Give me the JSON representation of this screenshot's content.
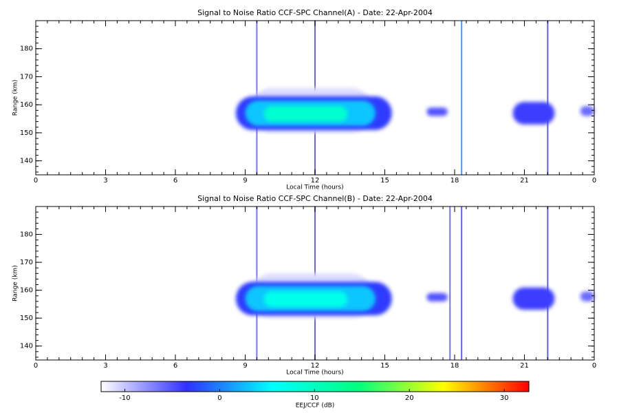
{
  "chart_data": [
    {
      "type": "heatmap",
      "title": "Signal to Noise Ratio CCF-SPC Channel(A) - Date: 22-Apr-2004",
      "xlabel": "Local Time (hours)",
      "ylabel": "Range (km)",
      "xlim": [
        0,
        24
      ],
      "xticks": [
        0,
        3,
        6,
        9,
        12,
        15,
        18,
        21,
        {
          "value": 24,
          "label": "0"
        }
      ],
      "ylim": [
        135,
        190
      ],
      "yticks": [
        140,
        150,
        160,
        170,
        180
      ],
      "regions": [
        {
          "x": [
            9.2,
            14.5
          ],
          "y": [
            150,
            166
          ],
          "value": -11
        },
        {
          "x": [
            8.6,
            15.3
          ],
          "y": [
            151,
            163
          ],
          "value": -3
        },
        {
          "x": [
            9.0,
            14.6
          ],
          "y": [
            152.5,
            161.5
          ],
          "value": 3
        },
        {
          "x": [
            9.8,
            13.4
          ],
          "y": [
            154,
            159.5
          ],
          "value": 9
        },
        {
          "x": [
            16.8,
            17.7
          ],
          "y": [
            156,
            159
          ],
          "value": -5
        },
        {
          "x": [
            20.5,
            22.3
          ],
          "y": [
            153,
            161
          ],
          "value": -4
        },
        {
          "x": [
            23.4,
            24
          ],
          "y": [
            156,
            159.5
          ],
          "value": -6
        }
      ],
      "streaks": [
        {
          "x": 9.5,
          "value": -5
        },
        {
          "x": 12,
          "value": -4
        },
        {
          "x": 18.3,
          "value": 0
        },
        {
          "x": 22,
          "value": -3
        }
      ]
    },
    {
      "type": "heatmap",
      "title": "Signal to Noise Ratio CCF-SPC Channel(B) - Date: 22-Apr-2004",
      "xlabel": "Local Time (hours)",
      "ylabel": "Range (km)",
      "xlim": [
        0,
        24
      ],
      "xticks": [
        0,
        3,
        6,
        9,
        12,
        15,
        18,
        21,
        {
          "value": 24,
          "label": "0"
        }
      ],
      "ylim": [
        135,
        190
      ],
      "yticks": [
        140,
        150,
        160,
        170,
        180
      ],
      "regions": [
        {
          "x": [
            9.2,
            14.5
          ],
          "y": [
            150,
            166
          ],
          "value": -11
        },
        {
          "x": [
            8.6,
            15.3
          ],
          "y": [
            151,
            163
          ],
          "value": -3
        },
        {
          "x": [
            9.0,
            14.6
          ],
          "y": [
            152.5,
            161.5
          ],
          "value": 3
        },
        {
          "x": [
            9.8,
            13.4
          ],
          "y": [
            154,
            159.5
          ],
          "value": 7
        },
        {
          "x": [
            16.8,
            17.7
          ],
          "y": [
            156,
            159
          ],
          "value": -5
        },
        {
          "x": [
            20.5,
            22.3
          ],
          "y": [
            153,
            161
          ],
          "value": -4
        },
        {
          "x": [
            23.4,
            24
          ],
          "y": [
            156,
            159.5
          ],
          "value": -6
        }
      ],
      "streaks": [
        {
          "x": 9.5,
          "value": -5
        },
        {
          "x": 12,
          "value": -4
        },
        {
          "x": 17.8,
          "value": -5
        },
        {
          "x": 18.3,
          "value": -4
        },
        {
          "x": 22,
          "value": -3
        }
      ]
    },
    {
      "type": "colorbar",
      "label": "EEJ/CCF (dB)",
      "clim": [
        -12.5,
        32.6
      ],
      "ticks": [
        -10,
        0,
        10,
        20,
        30
      ],
      "colormap": [
        "#ffffff",
        "#3030ff",
        "#00ffff",
        "#00ff80",
        "#ffff00",
        "#ff0000"
      ]
    }
  ]
}
